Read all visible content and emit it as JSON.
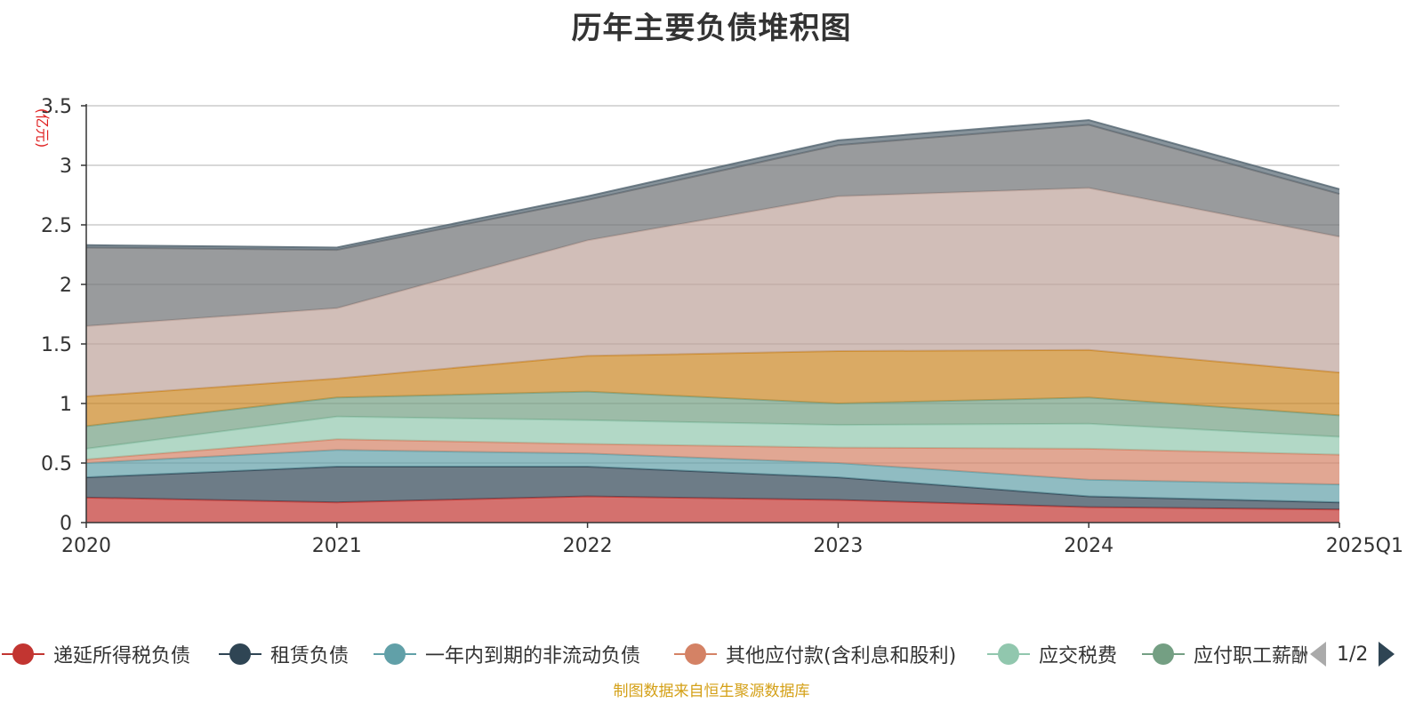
{
  "title": "历年主要负债堆积图",
  "source_note": "制图数据来自恒生聚源数据库",
  "pager": {
    "text": "1/2"
  },
  "chart_data": {
    "type": "area",
    "stacked": true,
    "title": "历年主要负债堆积图",
    "unit_label": "(亿元)",
    "categories": [
      "2020",
      "2021",
      "2022",
      "2023",
      "2024",
      "2025Q1"
    ],
    "ylim": [
      0,
      3.5
    ],
    "yticks": [
      "0",
      "0.5",
      "1",
      "1.5",
      "2",
      "2.5",
      "3",
      "3.5"
    ],
    "grid": true,
    "legend_position": "bottom",
    "series": [
      {
        "name": "递延所得税负债",
        "color": "#c23531",
        "values": [
          0.21,
          0.17,
          0.22,
          0.19,
          0.13,
          0.11
        ]
      },
      {
        "name": "租赁负债",
        "color": "#2f4554",
        "values": [
          0.17,
          0.3,
          0.25,
          0.19,
          0.09,
          0.06
        ]
      },
      {
        "name": "一年内到期的非流动负债",
        "color": "#61a0a8",
        "values": [
          0.12,
          0.14,
          0.11,
          0.12,
          0.14,
          0.15
        ]
      },
      {
        "name": "其他应付款(含利息和股利)",
        "color": "#d48265",
        "values": [
          0.03,
          0.09,
          0.08,
          0.13,
          0.26,
          0.25
        ]
      },
      {
        "name": "应交税费",
        "color": "#91c7ae",
        "values": [
          0.09,
          0.19,
          0.2,
          0.19,
          0.21,
          0.15
        ]
      },
      {
        "name": "应付职工薪酬",
        "color": "#749f83",
        "values": [
          0.19,
          0.16,
          0.24,
          0.18,
          0.22,
          0.18
        ]
      },
      {
        "name": "",
        "color": "#ca8622",
        "values": [
          0.25,
          0.16,
          0.3,
          0.44,
          0.4,
          0.36
        ]
      },
      {
        "name": "",
        "color": "#bda29a",
        "values": [
          0.59,
          0.59,
          0.97,
          1.3,
          1.36,
          1.14
        ]
      },
      {
        "name": "",
        "color": "#6e7074",
        "values": [
          0.66,
          0.49,
          0.34,
          0.43,
          0.53,
          0.36
        ]
      },
      {
        "name": "",
        "color": "#546570",
        "values": [
          0.02,
          0.02,
          0.03,
          0.04,
          0.04,
          0.04
        ]
      }
    ]
  }
}
